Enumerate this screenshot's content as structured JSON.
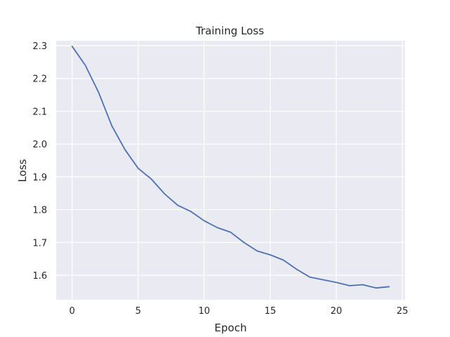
{
  "chart_data": {
    "type": "line",
    "title": "Training Loss",
    "xlabel": "Epoch",
    "ylabel": "Loss",
    "xlim": [
      -1.2,
      25.2
    ],
    "ylim": [
      1.525,
      2.315
    ],
    "xticks": [
      0,
      5,
      10,
      15,
      20,
      25
    ],
    "yticks": [
      1.6,
      1.7,
      1.8,
      1.9,
      2.0,
      2.1,
      2.2,
      2.3
    ],
    "xtick_labels": [
      "0",
      "5",
      "10",
      "15",
      "20",
      "25"
    ],
    "ytick_labels": [
      "1.6",
      "1.7",
      "1.8",
      "1.9",
      "2.0",
      "2.1",
      "2.2",
      "2.3"
    ],
    "grid": true,
    "colors": {
      "background": "#EAEAF2",
      "grid": "#FFFFFF",
      "line": "#4C72B0"
    },
    "series": [
      {
        "name": "Training Loss",
        "x": [
          0,
          1,
          2,
          3,
          4,
          5,
          6,
          7,
          8,
          9,
          10,
          11,
          12,
          13,
          14,
          15,
          16,
          17,
          18,
          19,
          20,
          21,
          22,
          23,
          24
        ],
        "values": [
          2.298,
          2.24,
          2.158,
          2.056,
          1.983,
          1.926,
          1.893,
          1.848,
          1.813,
          1.794,
          1.766,
          1.745,
          1.731,
          1.7,
          1.674,
          1.662,
          1.646,
          1.618,
          1.594,
          1.586,
          1.578,
          1.568,
          1.571,
          1.561,
          1.565
        ]
      }
    ]
  }
}
